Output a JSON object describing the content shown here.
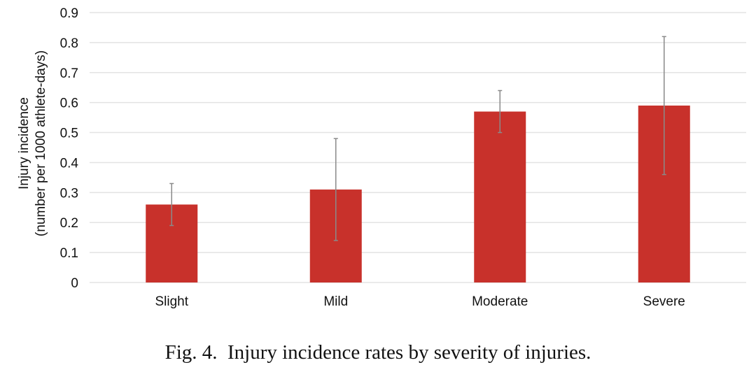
{
  "caption": "Fig. 4.  Injury incidence rates by severity of injuries.",
  "chart_data": {
    "type": "bar",
    "categories": [
      "Slight",
      "Mild",
      "Moderate",
      "Severe"
    ],
    "values": [
      0.26,
      0.31,
      0.57,
      0.59
    ],
    "error_bars": {
      "upper": [
        0.33,
        0.48,
        0.64,
        0.82
      ],
      "lower": [
        0.19,
        0.14,
        0.5,
        0.36
      ]
    },
    "ylabel_lines": [
      "Injury incidence",
      "(number per 1000 athlete-days)"
    ],
    "xlabel": "",
    "ylim": [
      0,
      0.9
    ],
    "yticks": [
      "0",
      "0.1",
      "0.2",
      "0.3",
      "0.4",
      "0.5",
      "0.6",
      "0.7",
      "0.8",
      "0.9"
    ],
    "grid": true,
    "bar_color": "#c8312b",
    "error_color": "#8a8a8a",
    "grid_color": "#e3e3e3"
  }
}
